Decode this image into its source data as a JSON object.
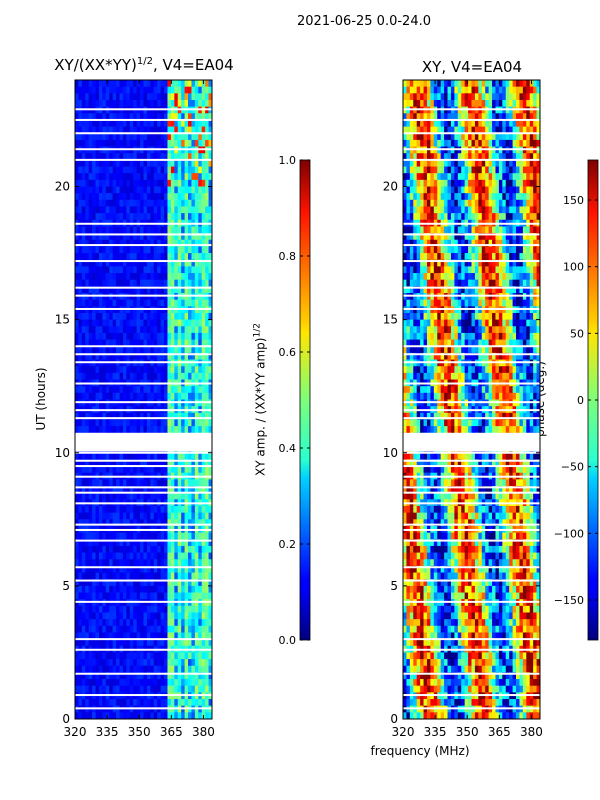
{
  "figure": {
    "suptitle": "2021-06-25 0.0-24.0",
    "shared_xlabel": "frequency (MHz)"
  },
  "chart_data": [
    {
      "type": "heatmap",
      "title_prefix": "XY/(XX*YY)",
      "title_exponent": "1/2",
      "title_suffix": ", V4=EA04",
      "ylabel": "UT (hours)",
      "xlim": [
        320,
        384
      ],
      "ylim": [
        0,
        24
      ],
      "xticks": [
        "320",
        "335",
        "350",
        "365",
        "380"
      ],
      "xtick_values": [
        320,
        335,
        350,
        365,
        380
      ],
      "yticks": [
        "0",
        "5",
        "10",
        "15",
        "20"
      ],
      "ytick_values": [
        0,
        5,
        10,
        15,
        20
      ],
      "colorbar": {
        "label_prefix": "XY amp. / (XX*YY amp)",
        "label_exponent": "1/2",
        "range": [
          0.0,
          1.0
        ],
        "ticks": [
          "0.0",
          "0.2",
          "0.4",
          "0.6",
          "0.8",
          "1.0"
        ],
        "tick_values": [
          0.0,
          0.2,
          0.4,
          0.6,
          0.8,
          1.0
        ],
        "colormap": "jet"
      },
      "gap_hours": [
        0.4,
        0.9,
        1.7,
        2.6,
        3.0,
        4.4,
        5.2,
        5.7,
        6.7,
        7.1,
        7.3,
        8.1,
        8.5,
        8.7,
        9.1,
        9.5,
        9.7,
        10.0,
        10.3,
        10.6,
        11.3,
        11.6,
        11.9,
        12.6,
        13.4,
        13.7,
        14.0,
        15.4,
        15.9,
        16.2,
        17.2,
        17.8,
        18.2,
        18.6,
        21.0,
        21.4,
        22.0,
        22.5,
        22.9
      ]
    },
    {
      "type": "heatmap",
      "title": "XY, V4=EA04",
      "ylabel": "",
      "xlim": [
        320,
        384
      ],
      "ylim": [
        0,
        24
      ],
      "xticks": [
        "320",
        "335",
        "350",
        "365",
        "380"
      ],
      "xtick_values": [
        320,
        335,
        350,
        365,
        380
      ],
      "yticks": [
        "0",
        "5",
        "10",
        "15",
        "20"
      ],
      "ytick_values": [
        0,
        5,
        10,
        15,
        20
      ],
      "colorbar": {
        "label": "phase (deg.)",
        "range": [
          -180,
          180
        ],
        "ticks": [
          "−150",
          "−100",
          "−50",
          "0",
          "50",
          "100",
          "150"
        ],
        "tick_values": [
          -150,
          -100,
          -50,
          0,
          50,
          100,
          150
        ],
        "colormap": "jet"
      },
      "gap_hours": [
        0.4,
        0.9,
        1.7,
        2.6,
        3.0,
        4.4,
        5.2,
        5.7,
        6.7,
        7.1,
        7.3,
        8.1,
        8.5,
        8.7,
        9.1,
        9.5,
        9.7,
        10.0,
        10.3,
        10.6,
        11.3,
        11.6,
        11.9,
        12.6,
        13.4,
        13.7,
        14.0,
        15.4,
        15.9,
        16.2,
        17.2,
        17.8,
        18.2,
        18.6,
        21.0,
        21.4,
        22.0,
        22.5,
        22.9
      ]
    }
  ]
}
